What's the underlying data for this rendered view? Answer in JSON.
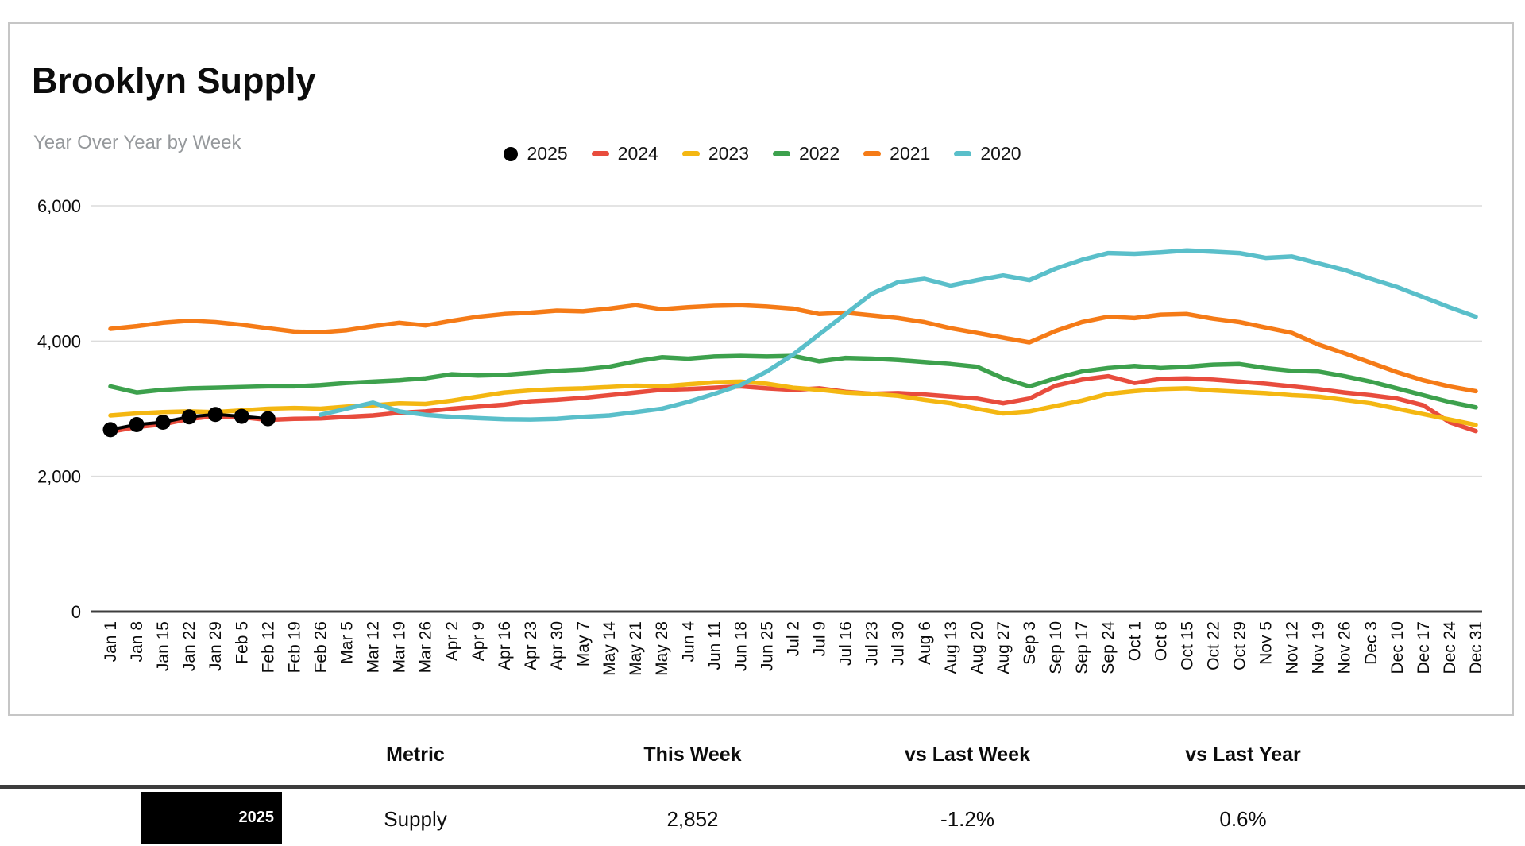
{
  "chart": {
    "title": "Brooklyn Supply",
    "subtitle": "Year Over Year by Week"
  },
  "chart_data": {
    "type": "line",
    "title": "Brooklyn Supply",
    "subtitle": "Year Over Year by Week",
    "grid": true,
    "legend_position": "top",
    "ylim": [
      0,
      6000
    ],
    "yticks": [
      0,
      2000,
      4000,
      6000
    ],
    "ytick_labels": [
      "0",
      "2,000",
      "4,000",
      "6,000"
    ],
    "categories": [
      "Jan 1",
      "Jan 8",
      "Jan 15",
      "Jan 22",
      "Jan 29",
      "Feb 5",
      "Feb 12",
      "Feb 19",
      "Feb 26",
      "Mar 5",
      "Mar 12",
      "Mar 19",
      "Mar 26",
      "Apr 2",
      "Apr 9",
      "Apr 16",
      "Apr 23",
      "Apr 30",
      "May 7",
      "May 14",
      "May 21",
      "May 28",
      "Jun 4",
      "Jun 11",
      "Jun 18",
      "Jun 25",
      "Jul 2",
      "Jul 9",
      "Jul 16",
      "Jul 23",
      "Jul 30",
      "Aug 6",
      "Aug 13",
      "Aug 20",
      "Aug 27",
      "Sep 3",
      "Sep 10",
      "Sep 17",
      "Sep 24",
      "Oct 1",
      "Oct 8",
      "Oct 15",
      "Oct 22",
      "Oct 29",
      "Nov 5",
      "Nov 12",
      "Nov 19",
      "Nov 26",
      "Dec 3",
      "Dec 10",
      "Dec 17",
      "Dec 24",
      "Dec 31"
    ],
    "series": [
      {
        "name": "2025",
        "color": "#000000",
        "marker": "circle",
        "start_index": 0,
        "values": [
          2690,
          2765,
          2800,
          2880,
          2915,
          2887,
          2852
        ]
      },
      {
        "name": "2024",
        "color": "#e84c3d",
        "start_index": 0,
        "values": [
          2660,
          2730,
          2770,
          2850,
          2890,
          2875,
          2835,
          2850,
          2855,
          2880,
          2900,
          2940,
          2960,
          3000,
          3030,
          3060,
          3110,
          3130,
          3160,
          3200,
          3240,
          3280,
          3290,
          3310,
          3330,
          3300,
          3280,
          3300,
          3250,
          3220,
          3230,
          3210,
          3180,
          3150,
          3080,
          3150,
          3340,
          3430,
          3480,
          3380,
          3440,
          3450,
          3430,
          3400,
          3370,
          3330,
          3290,
          3240,
          3200,
          3150,
          3050,
          2800,
          2670
        ]
      },
      {
        "name": "2023",
        "color": "#f4b712",
        "start_index": 0,
        "values": [
          2900,
          2930,
          2950,
          2960,
          2950,
          2975,
          3000,
          3010,
          3000,
          3030,
          3050,
          3080,
          3070,
          3120,
          3180,
          3240,
          3270,
          3290,
          3300,
          3320,
          3340,
          3330,
          3360,
          3390,
          3400,
          3370,
          3310,
          3280,
          3240,
          3220,
          3190,
          3130,
          3080,
          3000,
          2930,
          2960,
          3040,
          3120,
          3220,
          3260,
          3290,
          3300,
          3270,
          3250,
          3230,
          3200,
          3180,
          3130,
          3080,
          3000,
          2920,
          2840,
          2760
        ]
      },
      {
        "name": "2022",
        "color": "#3da14d",
        "start_index": 0,
        "values": [
          3330,
          3240,
          3280,
          3300,
          3310,
          3320,
          3330,
          3330,
          3350,
          3380,
          3400,
          3420,
          3450,
          3510,
          3490,
          3500,
          3530,
          3560,
          3580,
          3620,
          3700,
          3760,
          3740,
          3770,
          3780,
          3770,
          3780,
          3700,
          3750,
          3740,
          3720,
          3690,
          3660,
          3620,
          3450,
          3330,
          3450,
          3550,
          3600,
          3630,
          3600,
          3620,
          3650,
          3660,
          3600,
          3560,
          3550,
          3480,
          3400,
          3300,
          3200,
          3100,
          3020
        ]
      },
      {
        "name": "2021",
        "color": "#f57b17",
        "start_index": 0,
        "values": [
          4180,
          4220,
          4270,
          4300,
          4280,
          4240,
          4190,
          4140,
          4130,
          4160,
          4220,
          4270,
          4230,
          4300,
          4360,
          4400,
          4420,
          4450,
          4440,
          4480,
          4530,
          4470,
          4500,
          4520,
          4530,
          4510,
          4480,
          4400,
          4420,
          4380,
          4340,
          4280,
          4190,
          4120,
          4050,
          3980,
          4150,
          4280,
          4360,
          4340,
          4390,
          4400,
          4330,
          4280,
          4200,
          4120,
          3950,
          3820,
          3680,
          3540,
          3420,
          3330,
          3260
        ]
      },
      {
        "name": "2020",
        "color": "#5abfca",
        "start_index": 8,
        "values": [
          2910,
          3000,
          3090,
          2960,
          2910,
          2880,
          2860,
          2845,
          2840,
          2850,
          2880,
          2900,
          2950,
          3000,
          3100,
          3220,
          3350,
          3550,
          3800,
          4100,
          4400,
          4700,
          4870,
          4920,
          4820,
          4900,
          4970,
          4900,
          5070,
          5200,
          5300,
          5290,
          5310,
          5340,
          5320,
          5300,
          5230,
          5250,
          5150,
          5050,
          4920,
          4800,
          4650,
          4500,
          4360
        ]
      }
    ]
  },
  "table": {
    "columns": [
      "Metric",
      "This Week",
      "vs Last Week",
      "vs Last Year"
    ],
    "rows": [
      {
        "year": "2025",
        "metric": "Supply",
        "this_week": "2,852",
        "vs_last_week": "-1.2%",
        "vs_last_year": "0.6%"
      }
    ]
  }
}
